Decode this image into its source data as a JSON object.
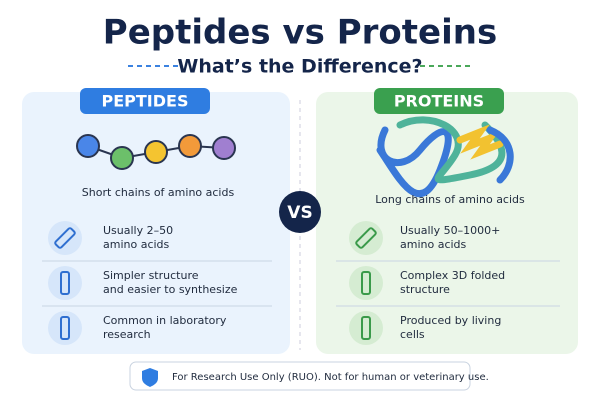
{
  "header": {
    "title": "Peptides vs Proteins",
    "subtitle": "What’s the Difference?"
  },
  "left": {
    "label": "PEPTIDES",
    "caption": "Short chains of amino acids",
    "items": [
      {
        "lines": [
          "Usually 2–50",
          "amino acids"
        ]
      },
      {
        "lines": [
          "Simpler structure",
          "and easier to synthesize"
        ]
      },
      {
        "lines": [
          "Common in laboratory",
          "research"
        ]
      }
    ]
  },
  "vs": "VS",
  "right": {
    "label": "PROTEINS",
    "caption": "Long chains of amino acids",
    "items": [
      {
        "lines": [
          "Usually 50–1000+",
          "amino acids"
        ]
      },
      {
        "lines": [
          "Complex 3D folded",
          "structure"
        ]
      },
      {
        "lines": [
          "Produced by living",
          "cells"
        ]
      }
    ]
  },
  "footer": "For Research Use Only (RUO). Not for human or veterinary use."
}
